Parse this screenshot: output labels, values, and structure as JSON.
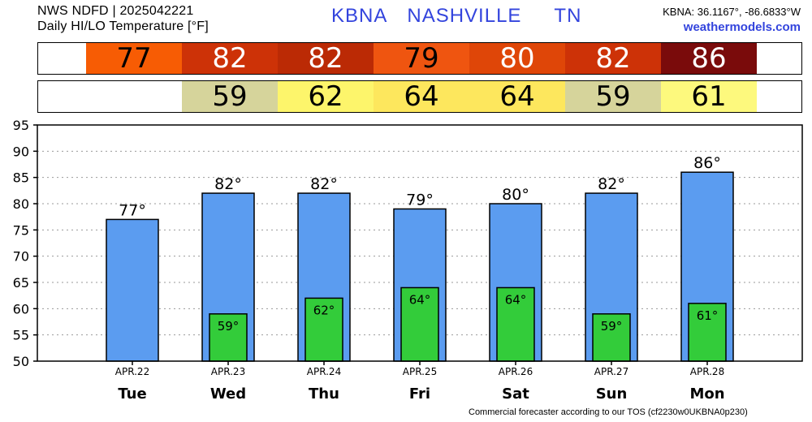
{
  "header": {
    "line1": "NWS NDFD | 2025042221",
    "line2": "Daily HI/LO Temperature [°F]",
    "station_id": "KBNA",
    "station_name": "NASHVILLE",
    "state": "TN",
    "coords": "KBNA: 36.1167°, -86.6833°W",
    "site": "weathermodels.com"
  },
  "footer": "Commercial forecaster according to our TOS (cf2230w0UKBNA0p230)",
  "colors": {
    "hi_bar": "#5b9cf0",
    "lo_bar": "#33cc3a",
    "title_blue": "#3344dd",
    "hi_strip": [
      "#f75c04",
      "#cd3207",
      "#bb2a05",
      "#ef5510",
      "#df4608",
      "#cd3207",
      "#7a0b0b"
    ],
    "lo_strip": [
      null,
      "#d6d49b",
      "#fdf56b",
      "#fde75d",
      "#fde75d",
      "#d6d49b",
      "#fdf97d"
    ],
    "hi_text": [
      "#000000",
      "#ffffff",
      "#ffffff",
      "#000000",
      "#ffffff",
      "#ffffff",
      "#ffffff"
    ]
  },
  "chart_data": {
    "type": "bar",
    "categories": [
      "Tue",
      "Wed",
      "Thu",
      "Fri",
      "Sat",
      "Sun",
      "Mon"
    ],
    "dates": [
      "APR.22",
      "APR.23",
      "APR.24",
      "APR.25",
      "APR.26",
      "APR.27",
      "APR.28"
    ],
    "series": [
      {
        "name": "HI",
        "values": [
          77,
          82,
          82,
          79,
          80,
          82,
          86
        ]
      },
      {
        "name": "LO",
        "values": [
          null,
          59,
          62,
          64,
          64,
          59,
          61
        ]
      }
    ],
    "ylim": [
      50,
      95
    ],
    "yticks": [
      50,
      55,
      60,
      65,
      70,
      75,
      80,
      85,
      90,
      95
    ],
    "grid": true,
    "hi_labels": [
      "77°",
      "82°",
      "82°",
      "79°",
      "80°",
      "82°",
      "86°"
    ],
    "lo_labels": [
      "",
      "59°",
      "62°",
      "64°",
      "64°",
      "59°",
      "61°"
    ]
  }
}
